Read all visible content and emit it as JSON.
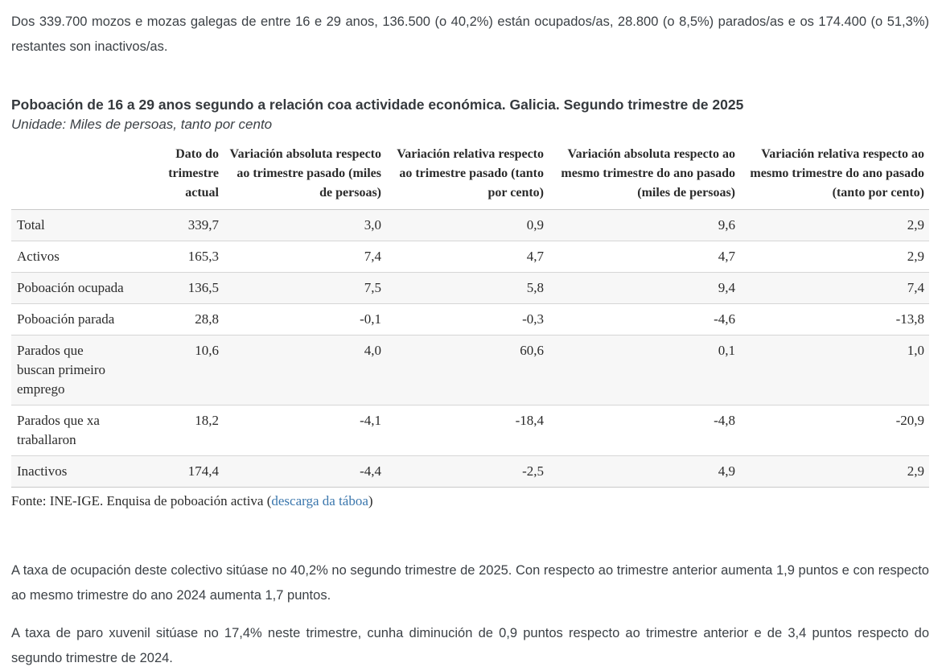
{
  "intro": {
    "text": "Dos 339.700 mozos e mozas galegas de entre 16 e 29 anos, 136.500 (o 40,2%) están ocupados/as, 28.800 (o 8,5%) parados/as e os 174.400 (o 51,3%) restantes son inactivos/as."
  },
  "table": {
    "title": "Poboación de 16 a 29 anos segundo a relación coa actividade económica. Galicia. Segundo trimestre de 2025",
    "unit": "Unidade: Miles de persoas, tanto por cento",
    "columns": [
      "Dato do trimestre actual",
      "Variación absoluta respecto ao trimestre pasado (miles de persoas)",
      "Variación relativa respecto ao trimestre pasado (tanto por cento)",
      "Variación absoluta respecto ao mesmo trimestre do ano pasado (miles de persoas)",
      "Variación relativa respecto ao mesmo trimestre do ano pasado (tanto por cento)"
    ],
    "rows": [
      {
        "label": "Total",
        "values": [
          "339,7",
          "3,0",
          "0,9",
          "9,6",
          "2,9"
        ]
      },
      {
        "label": "Activos",
        "values": [
          "165,3",
          "7,4",
          "4,7",
          "4,7",
          "2,9"
        ]
      },
      {
        "label": "Poboación ocupada",
        "values": [
          "136,5",
          "7,5",
          "5,8",
          "9,4",
          "7,4"
        ]
      },
      {
        "label": "Poboación parada",
        "values": [
          "28,8",
          "-0,1",
          "-0,3",
          "-4,6",
          "-13,8"
        ]
      },
      {
        "label": "Parados que\nbuscan primeiro\nemprego",
        "values": [
          "10,6",
          "4,0",
          "60,6",
          "0,1",
          "1,0"
        ]
      },
      {
        "label": "Parados que xa\ntraballaron",
        "values": [
          "18,2",
          "-4,1",
          "-18,4",
          "-4,8",
          "-20,9"
        ]
      },
      {
        "label": "Inactivos",
        "values": [
          "174,4",
          "-4,4",
          "-2,5",
          "4,9",
          "2,9"
        ]
      }
    ],
    "source": {
      "prefix": "Fonte: INE-IGE. Enquisa de poboación activa (",
      "link_label": "descarga da táboa",
      "suffix": ")"
    }
  },
  "commentary": {
    "occupation_rate": "A taxa de ocupación deste colectivo sitúase no 40,2% no segundo trimestre de 2025. Con respecto ao trimestre anterior aumenta 1,9 puntos e con respecto ao mesmo trimestre do ano 2024 aumenta 1,7 puntos.",
    "unemployment_rate": "A taxa de paro xuvenil sitúase no 17,4% neste trimestre, cunha diminución de 0,9 puntos respecto ao trimestre anterior e de 3,4 puntos respecto do segundo trimestre de 2024."
  },
  "colors": {
    "link": "#3b77ad",
    "row_stripe": "#f7f7f7",
    "row_border": "#d6d6d6",
    "body_text": "#3c4146",
    "table_text": "#2b2b2b"
  }
}
